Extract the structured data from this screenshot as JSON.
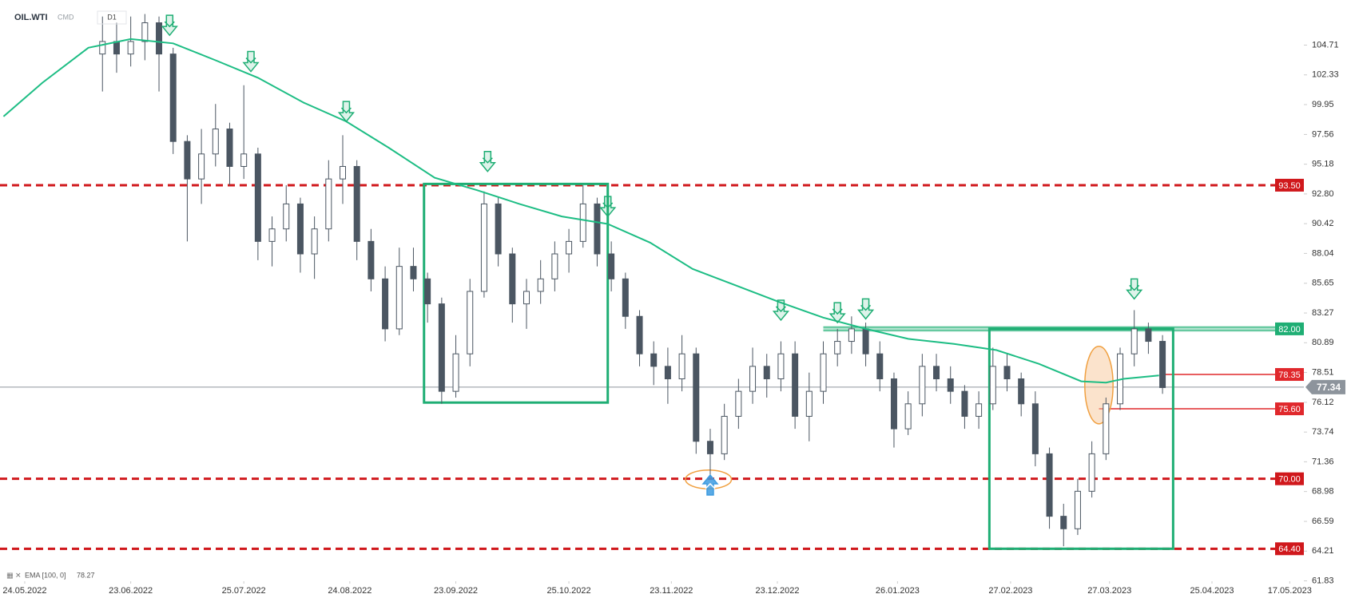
{
  "chart_data": {
    "type": "candlestick",
    "title": "OIL.WTI",
    "instrument_class": "CMD",
    "timeframe": "D1",
    "ema_label": "EMA [100, 0]",
    "ema_value": 78.27,
    "xlim": [
      "17.05.2022",
      "21.05.2023"
    ],
    "xticks": [
      "24.05.2022",
      "23.06.2022",
      "25.07.2022",
      "24.08.2022",
      "23.09.2022",
      "25.10.2022",
      "23.11.2022",
      "23.12.2022",
      "26.01.2023",
      "27.02.2023",
      "27.03.2023",
      "25.04.2023",
      "17.05.2023"
    ],
    "ylim": [
      61.8,
      107.3
    ],
    "yticks": [
      104.71,
      102.33,
      99.95,
      97.56,
      95.18,
      {
        "value": 92.8,
        "label": "92.80"
      },
      90.42,
      88.04,
      85.65,
      83.27,
      80.89,
      78.51,
      76.12,
      73.74,
      71.36,
      68.98,
      66.59,
      64.21,
      61.83
    ],
    "up_color": "#ffffff",
    "down_color": "#4b5662",
    "outline_color": "#4b5662",
    "x": [
      "15.06.2022",
      "19.06.2022",
      "23.06.2022",
      "27.06.2022",
      "01.07.2022",
      "05.07.2022",
      "09.07.2022",
      "13.07.2022",
      "17.07.2022",
      "21.07.2022",
      "25.07.2022",
      "29.07.2022",
      "02.08.2022",
      "06.08.2022",
      "10.08.2022",
      "14.08.2022",
      "18.08.2022",
      "22.08.2022",
      "26.08.2022",
      "30.08.2022",
      "03.09.2022",
      "07.09.2022",
      "11.09.2022",
      "15.09.2022",
      "19.09.2022",
      "23.09.2022",
      "27.09.2022",
      "01.10.2022",
      "05.10.2022",
      "09.10.2022",
      "13.10.2022",
      "17.10.2022",
      "21.10.2022",
      "25.10.2022",
      "29.10.2022",
      "02.11.2022",
      "06.11.2022",
      "10.11.2022",
      "14.11.2022",
      "18.11.2022",
      "22.11.2022",
      "26.11.2022",
      "30.11.2022",
      "04.12.2022",
      "08.12.2022",
      "12.12.2022",
      "16.12.2022",
      "20.12.2022",
      "24.12.2022",
      "28.12.2022",
      "01.01.2023",
      "05.01.2023",
      "09.01.2023",
      "13.01.2023",
      "17.01.2023",
      "21.01.2023",
      "25.01.2023",
      "29.01.2023",
      "02.02.2023",
      "06.02.2023",
      "10.02.2023",
      "14.02.2023",
      "18.02.2023",
      "22.02.2023",
      "26.02.2023",
      "02.03.2023",
      "06.03.2023",
      "10.03.2023",
      "14.03.2023",
      "18.03.2023",
      "22.03.2023",
      "26.03.2023",
      "30.03.2023",
      "03.04.2023",
      "07.04.2023",
      "11.04.2023"
    ],
    "ohlc": [
      [
        104,
        107,
        101,
        105
      ],
      [
        105,
        106.5,
        102.5,
        104
      ],
      [
        104,
        107,
        103,
        105
      ],
      [
        105,
        107.2,
        103.5,
        106.5
      ],
      [
        106.5,
        107,
        101,
        104
      ],
      [
        104,
        104.5,
        96,
        97
      ],
      [
        97,
        97.5,
        89,
        94
      ],
      [
        94,
        98,
        92,
        96
      ],
      [
        96,
        100,
        95,
        98
      ],
      [
        98,
        98.5,
        93.5,
        95
      ],
      [
        95,
        101.5,
        94,
        96
      ],
      [
        96,
        96.5,
        87.5,
        89
      ],
      [
        89,
        91,
        87,
        90
      ],
      [
        90,
        93.5,
        89,
        92
      ],
      [
        92,
        92.5,
        86.5,
        88
      ],
      [
        88,
        91,
        86,
        90
      ],
      [
        90,
        95.5,
        89,
        94
      ],
      [
        94,
        97.5,
        92,
        95
      ],
      [
        95,
        95.5,
        87.5,
        89
      ],
      [
        89,
        90,
        85,
        86
      ],
      [
        86,
        87,
        81,
        82
      ],
      [
        82,
        88.5,
        81.5,
        87
      ],
      [
        87,
        88.5,
        85,
        86
      ],
      [
        86,
        86.5,
        82.5,
        84
      ],
      [
        84,
        84.5,
        76,
        77
      ],
      [
        77,
        81.5,
        76.5,
        80
      ],
      [
        80,
        86,
        79,
        85
      ],
      [
        85,
        93,
        84.5,
        92
      ],
      [
        92,
        92.5,
        87,
        88
      ],
      [
        88,
        88.5,
        82.5,
        84
      ],
      [
        84,
        86,
        82,
        85
      ],
      [
        85,
        87.5,
        84,
        86
      ],
      [
        86,
        89,
        85,
        88
      ],
      [
        88,
        90,
        86.5,
        89
      ],
      [
        89,
        93.5,
        88.5,
        92
      ],
      [
        92,
        92.5,
        87,
        88
      ],
      [
        88,
        89,
        85,
        86
      ],
      [
        86,
        86.5,
        82,
        83
      ],
      [
        83,
        83.5,
        79,
        80
      ],
      [
        80,
        81,
        77.5,
        79
      ],
      [
        79,
        80.5,
        76,
        78
      ],
      [
        78,
        81.5,
        77,
        80
      ],
      [
        80,
        80.5,
        72,
        73
      ],
      [
        73,
        74,
        70.1,
        72
      ],
      [
        72,
        76,
        71.5,
        75
      ],
      [
        75,
        78,
        74,
        77
      ],
      [
        77,
        80.5,
        76,
        79
      ],
      [
        79,
        80,
        76.5,
        78
      ],
      [
        78,
        81,
        77,
        80
      ],
      [
        80,
        81,
        74,
        75
      ],
      [
        75,
        78.5,
        73,
        77
      ],
      [
        77,
        81,
        76,
        80
      ],
      [
        80,
        82,
        79,
        81
      ],
      [
        81,
        83,
        80,
        82
      ],
      [
        82,
        82.5,
        79,
        80
      ],
      [
        80,
        81,
        77,
        78
      ],
      [
        78,
        78.5,
        72.5,
        74
      ],
      [
        74,
        77,
        73.5,
        76
      ],
      [
        76,
        80,
        75,
        79
      ],
      [
        79,
        80,
        77,
        78
      ],
      [
        78,
        79,
        76,
        77
      ],
      [
        77,
        77.5,
        74,
        75
      ],
      [
        75,
        77,
        74,
        76
      ],
      [
        76,
        80.5,
        75.5,
        79
      ],
      [
        79,
        80,
        77,
        78
      ],
      [
        78,
        78.5,
        75,
        76
      ],
      [
        76,
        77,
        71,
        72
      ],
      [
        72,
        72.5,
        66,
        67
      ],
      [
        67,
        68,
        64.6,
        66
      ],
      [
        66,
        70,
        65.5,
        69
      ],
      [
        69,
        73,
        68.5,
        72
      ],
      [
        72,
        76.5,
        71.5,
        76
      ],
      [
        76,
        80.5,
        75.5,
        80
      ],
      [
        80,
        83.5,
        79,
        82
      ],
      [
        82,
        82.5,
        80,
        81
      ],
      [
        81,
        81.5,
        76.8,
        77.3
      ]
    ],
    "ema": {
      "color": "#1dbd84",
      "x": [
        "18.05.2022",
        "29.05.2022",
        "11.06.2022",
        "23.06.2022",
        "05.07.2022",
        "17.07.2022",
        "29.07.2022",
        "11.08.2022",
        "23.08.2022",
        "04.09.2022",
        "17.09.2022",
        "29.09.2022",
        "11.10.2022",
        "23.10.2022",
        "05.11.2022",
        "17.11.2022",
        "29.11.2022",
        "11.12.2022",
        "24.12.2022",
        "05.01.2023",
        "17.01.2023",
        "29.01.2023",
        "11.02.2023",
        "23.02.2023",
        "07.03.2023",
        "19.03.2023",
        "26.03.2023",
        "31.03.2023",
        "10.04.2023"
      ],
      "values": [
        99.0,
        101.7,
        104.5,
        105.2,
        104.85,
        103.5,
        102.1,
        100.1,
        98.6,
        96.5,
        94.1,
        93.1,
        92.0,
        91.0,
        90.4,
        88.9,
        86.8,
        85.5,
        84.1,
        82.9,
        82.0,
        81.2,
        80.8,
        80.3,
        79.2,
        77.8,
        77.7,
        78.0,
        78.27
      ]
    },
    "levels": [
      {
        "value": 93.5,
        "label": "93.50",
        "color": "#d0181c",
        "style": "dashed"
      },
      {
        "value": 82,
        "label": "82.00",
        "color": "#1fae74",
        "style": "band",
        "from": "05.01.2023"
      },
      {
        "value": 70,
        "label": "70.00",
        "color": "#d0181c",
        "style": "dashed"
      },
      {
        "value": 64.4,
        "label": "64.40",
        "color": "#d0181c",
        "style": "dashed"
      },
      {
        "value": 78.35,
        "color": "#e0282c",
        "style": "solid",
        "from": "11.04.2023"
      },
      {
        "value": 75.6,
        "label": "75.60",
        "color": "#e0282c",
        "style": "solid",
        "from": "24.03.2023"
      },
      {
        "value": 77.34,
        "color": "#8d949c",
        "style": "thin"
      }
    ],
    "zones": [
      {
        "x": [
          "14.09.2022",
          "05.11.2022"
        ],
        "y": [
          76.1,
          93.6
        ],
        "color": "#1fae74"
      },
      {
        "x": [
          "21.02.2023",
          "14.04.2023"
        ],
        "y": [
          64.4,
          82.0
        ],
        "color": "#1fae74"
      }
    ],
    "highlights": [
      {
        "x": [
          "27.11.2022",
          "10.12.2022"
        ],
        "y": [
          69.2,
          70.7
        ],
        "color": "#f0a040",
        "fill": "none"
      },
      {
        "x": [
          "20.03.2023",
          "28.03.2023"
        ],
        "y": [
          74.4,
          80.6
        ],
        "color": "#f0a040",
        "fill": "#f8c89a"
      }
    ],
    "markers": [
      {
        "x": "04.07.2022",
        "y": 105.5,
        "direction": "down",
        "color": "#1fae74"
      },
      {
        "x": "27.07.2022",
        "y": 102.6,
        "direction": "down",
        "color": "#1fae74"
      },
      {
        "x": "23.08.2022",
        "y": 98.6,
        "direction": "down",
        "color": "#1fae74"
      },
      {
        "x": "02.10.2022",
        "y": 94.6,
        "direction": "down",
        "color": "#1fae74"
      },
      {
        "x": "05.11.2022",
        "y": 91.0,
        "direction": "down",
        "color": "#1fae74"
      },
      {
        "x": "24.12.2022",
        "y": 82.7,
        "direction": "down",
        "color": "#1fae74"
      },
      {
        "x": "09.01.2023",
        "y": 82.5,
        "direction": "down",
        "color": "#1fae74"
      },
      {
        "x": "17.01.2023",
        "y": 82.8,
        "direction": "down",
        "color": "#1fae74"
      },
      {
        "x": "03.04.2023",
        "y": 84.4,
        "direction": "down",
        "color": "#1fae74"
      },
      {
        "x": "04.12.2022",
        "y": 70.3,
        "direction": "up",
        "color": "#3d9be0"
      }
    ]
  }
}
